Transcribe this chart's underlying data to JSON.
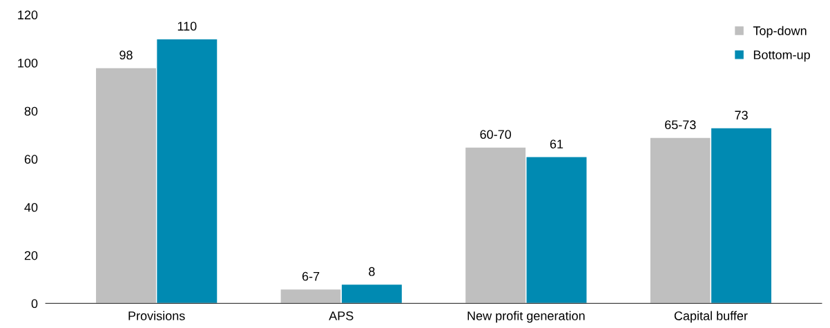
{
  "chart_data": {
    "type": "bar",
    "categories": [
      "Provisions",
      "APS",
      "New profit generation",
      "Capital buffer"
    ],
    "series": [
      {
        "name": "Top-down",
        "color": "#bfbfbf",
        "values": [
          98,
          6,
          65,
          69
        ],
        "value_labels": [
          "98",
          "6-7",
          "60-70",
          "65-73"
        ]
      },
      {
        "name": "Bottom-up",
        "color": "#008ab2",
        "values": [
          110,
          8,
          61,
          73
        ],
        "value_labels": [
          "110",
          "8",
          "61",
          "73"
        ]
      }
    ],
    "ylim": [
      0,
      120
    ],
    "yticks": [
      0,
      20,
      40,
      60,
      80,
      100,
      120
    ],
    "grid": false,
    "legend": "top right"
  }
}
